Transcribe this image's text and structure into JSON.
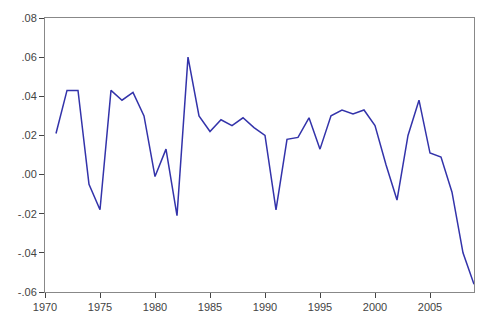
{
  "chart_data": {
    "type": "line",
    "x": [
      1971,
      1972,
      1973,
      1974,
      1975,
      1976,
      1977,
      1978,
      1979,
      1980,
      1981,
      1982,
      1983,
      1984,
      1985,
      1986,
      1987,
      1988,
      1989,
      1990,
      1991,
      1992,
      1993,
      1994,
      1995,
      1996,
      1997,
      1998,
      1999,
      2000,
      2001,
      2002,
      2003,
      2004,
      2005,
      2006,
      2007,
      2008,
      2009
    ],
    "values": [
      0.021,
      0.043,
      0.043,
      -0.005,
      -0.018,
      0.043,
      0.038,
      0.042,
      0.03,
      -0.001,
      0.013,
      -0.021,
      0.06,
      0.03,
      0.022,
      0.028,
      0.025,
      0.029,
      0.024,
      0.02,
      -0.018,
      0.018,
      0.019,
      0.029,
      0.013,
      0.03,
      0.033,
      0.031,
      0.033,
      0.025,
      0.005,
      -0.013,
      0.02,
      0.038,
      0.011,
      0.009,
      -0.009,
      -0.04,
      -0.056
    ],
    "color": "#3333aa",
    "xlim": [
      1970,
      2009
    ],
    "ylim": [
      -0.06,
      0.08
    ],
    "xticks": [
      1970,
      1975,
      1980,
      1985,
      1990,
      1995,
      2000,
      2005
    ],
    "yticks": [
      {
        "value": -0.06,
        "label": "-.06"
      },
      {
        "value": -0.04,
        "label": "-.04"
      },
      {
        "value": -0.02,
        "label": "-.02"
      },
      {
        "value": 0.0,
        "label": ".00"
      },
      {
        "value": 0.02,
        "label": ".02"
      },
      {
        "value": 0.04,
        "label": ".04"
      },
      {
        "value": 0.06,
        "label": ".06"
      },
      {
        "value": 0.08,
        "label": ".08"
      }
    ],
    "grid": false
  }
}
